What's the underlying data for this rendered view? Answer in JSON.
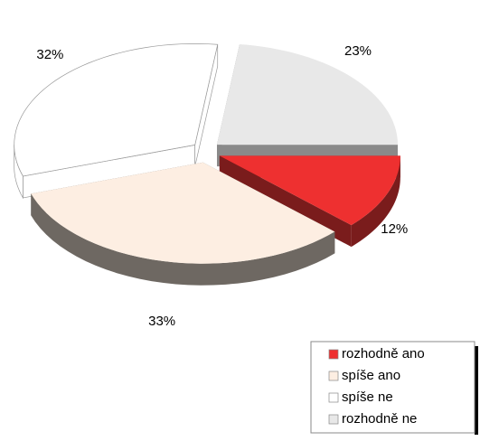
{
  "chart_data": {
    "type": "pie",
    "categories": [
      "rozhodně ano",
      "spíše ano",
      "spíše ne",
      "rozhodně ne"
    ],
    "values": [
      12,
      33,
      32,
      23
    ],
    "value_labels": [
      "12%",
      "33%",
      "32%",
      "23%"
    ],
    "colors": [
      "#ee3030",
      "#fdeee2",
      "#ffffff",
      "#e8e8e8"
    ],
    "legend": "bottom-right"
  }
}
